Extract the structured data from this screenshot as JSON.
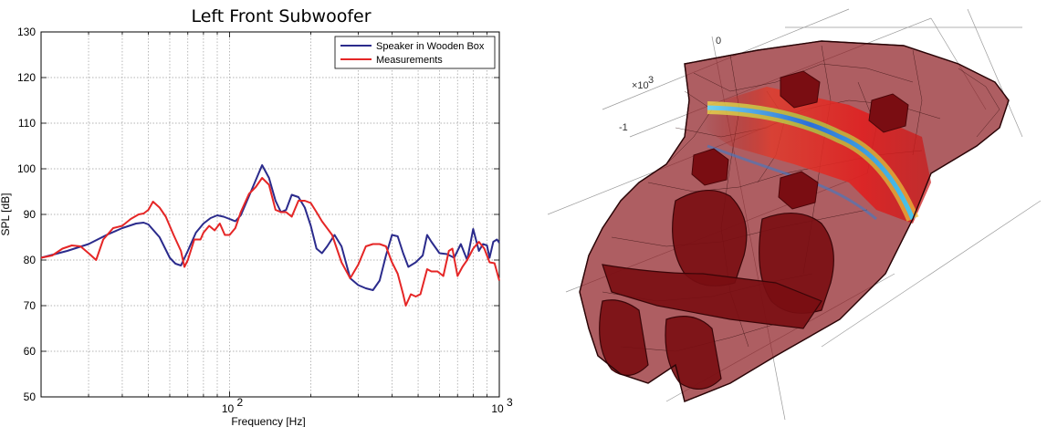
{
  "chart_data": {
    "type": "line",
    "title": "Left Front Subwoofer",
    "xlabel": "Frequency [Hz]",
    "ylabel": "SPL [dB]",
    "xscale": "log",
    "xlim": [
      20,
      1000
    ],
    "ylim": [
      50,
      130
    ],
    "yticks": [
      50,
      60,
      70,
      80,
      90,
      100,
      110,
      120,
      130
    ],
    "xtick_major_labels": [
      {
        "value": 100,
        "base": "10",
        "exp": "2"
      },
      {
        "value": 1000,
        "base": "10",
        "exp": "3"
      }
    ],
    "grid": true,
    "legend_position": "top-right",
    "series": [
      {
        "name": "Speaker in Wooden Box",
        "color": "#2b2b8c",
        "points": [
          [
            20,
            80.5
          ],
          [
            25,
            82
          ],
          [
            30,
            83.5
          ],
          [
            35,
            85.5
          ],
          [
            40,
            87
          ],
          [
            45,
            88
          ],
          [
            48,
            88.2
          ],
          [
            50,
            87.8
          ],
          [
            55,
            85
          ],
          [
            60,
            80.5
          ],
          [
            63,
            79.2
          ],
          [
            66,
            78.8
          ],
          [
            70,
            82
          ],
          [
            75,
            86
          ],
          [
            80,
            88
          ],
          [
            85,
            89.2
          ],
          [
            90,
            89.8
          ],
          [
            95,
            89.5
          ],
          [
            100,
            89
          ],
          [
            105,
            88.5
          ],
          [
            110,
            89.8
          ],
          [
            118,
            94
          ],
          [
            125,
            97.5
          ],
          [
            132,
            100.8
          ],
          [
            140,
            98
          ],
          [
            148,
            93
          ],
          [
            155,
            90.5
          ],
          [
            162,
            91
          ],
          [
            170,
            94.3
          ],
          [
            180,
            93.8
          ],
          [
            190,
            91.5
          ],
          [
            200,
            87.5
          ],
          [
            210,
            82.5
          ],
          [
            220,
            81.5
          ],
          [
            230,
            83
          ],
          [
            245,
            85.5
          ],
          [
            260,
            83
          ],
          [
            280,
            76
          ],
          [
            300,
            74.5
          ],
          [
            320,
            73.8
          ],
          [
            340,
            73.4
          ],
          [
            360,
            75.5
          ],
          [
            380,
            81
          ],
          [
            400,
            85.5
          ],
          [
            420,
            85.2
          ],
          [
            440,
            81.5
          ],
          [
            460,
            78.5
          ],
          [
            490,
            79.5
          ],
          [
            520,
            81
          ],
          [
            540,
            85.5
          ],
          [
            560,
            84
          ],
          [
            600,
            81.5
          ],
          [
            640,
            81.3
          ],
          [
            680,
            80.5
          ],
          [
            720,
            83.5
          ],
          [
            760,
            80
          ],
          [
            800,
            86.8
          ],
          [
            840,
            82
          ],
          [
            870,
            83.5
          ],
          [
            900,
            83.2
          ],
          [
            920,
            80.5
          ],
          [
            950,
            84
          ],
          [
            980,
            84.5
          ],
          [
            1000,
            83.8
          ]
        ]
      },
      {
        "name": "Measurements",
        "color": "#e52626",
        "points": [
          [
            20,
            80.5
          ],
          [
            22,
            81
          ],
          [
            24,
            82.5
          ],
          [
            26,
            83.2
          ],
          [
            28,
            83
          ],
          [
            30,
            81.5
          ],
          [
            32,
            80
          ],
          [
            34,
            84.5
          ],
          [
            37,
            87
          ],
          [
            40,
            87.5
          ],
          [
            43,
            89
          ],
          [
            46,
            90
          ],
          [
            48,
            90.2
          ],
          [
            50,
            91
          ],
          [
            52,
            92.8
          ],
          [
            55,
            91.5
          ],
          [
            58,
            89.5
          ],
          [
            62,
            85.5
          ],
          [
            66,
            82
          ],
          [
            68,
            78.5
          ],
          [
            70,
            80
          ],
          [
            74,
            84.5
          ],
          [
            78,
            84.5
          ],
          [
            80,
            86
          ],
          [
            84,
            87.5
          ],
          [
            88,
            86.5
          ],
          [
            92,
            88
          ],
          [
            96,
            85.5
          ],
          [
            100,
            85.5
          ],
          [
            105,
            87
          ],
          [
            110,
            90.5
          ],
          [
            118,
            94.5
          ],
          [
            125,
            96
          ],
          [
            132,
            98
          ],
          [
            140,
            96.5
          ],
          [
            148,
            91
          ],
          [
            155,
            90.5
          ],
          [
            162,
            90.5
          ],
          [
            170,
            89.5
          ],
          [
            180,
            93
          ],
          [
            190,
            93
          ],
          [
            200,
            92.5
          ],
          [
            210,
            90.5
          ],
          [
            220,
            88.5
          ],
          [
            240,
            85.5
          ],
          [
            260,
            79.5
          ],
          [
            280,
            76
          ],
          [
            300,
            79
          ],
          [
            320,
            83
          ],
          [
            340,
            83.5
          ],
          [
            360,
            83.5
          ],
          [
            380,
            83
          ],
          [
            400,
            79.5
          ],
          [
            420,
            77
          ],
          [
            440,
            72.5
          ],
          [
            450,
            70
          ],
          [
            470,
            72.5
          ],
          [
            490,
            72
          ],
          [
            510,
            72.5
          ],
          [
            540,
            78
          ],
          [
            560,
            77.5
          ],
          [
            590,
            77.5
          ],
          [
            620,
            76.5
          ],
          [
            650,
            82
          ],
          [
            670,
            82.5
          ],
          [
            700,
            76.5
          ],
          [
            730,
            78.5
          ],
          [
            760,
            80
          ],
          [
            800,
            82.5
          ],
          [
            840,
            84
          ],
          [
            880,
            82.5
          ],
          [
            920,
            79.5
          ],
          [
            960,
            79.3
          ],
          [
            1000,
            75.5
          ]
        ]
      }
    ]
  },
  "render_panel": {
    "axis_labels": [
      "0",
      "×10",
      "3",
      "-1"
    ],
    "colors": {
      "body_fill": "#8b1a1f",
      "body_edge": "#3a0a0c",
      "seat_fill": "#7a0d12",
      "field_hot": "#e02020"
    }
  }
}
